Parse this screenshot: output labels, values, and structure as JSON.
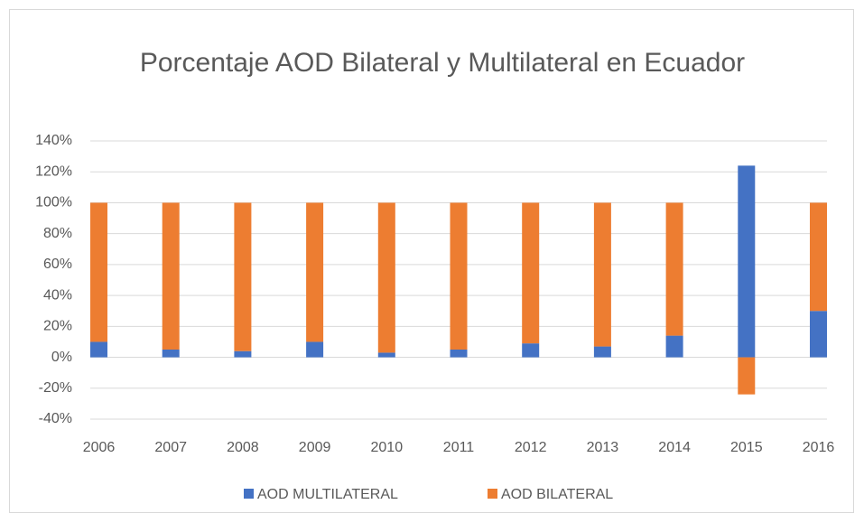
{
  "chart_data": {
    "type": "stacked_bar",
    "title": "Porcentaje AOD Bilateral y Multilateral en Ecuador",
    "categories": [
      "2006",
      "2007",
      "2008",
      "2009",
      "2010",
      "2011",
      "2012",
      "2013",
      "2014",
      "2015",
      "2016"
    ],
    "series": [
      {
        "name": "AOD MULTILATERAL",
        "color": "#4472c4",
        "values": [
          10,
          5,
          4,
          10,
          3,
          5,
          9,
          7,
          14,
          124,
          30
        ]
      },
      {
        "name": "AOD BILATERAL",
        "color": "#ed7d31",
        "values": [
          90,
          95,
          96,
          90,
          97,
          95,
          91,
          93,
          86,
          -24,
          70
        ]
      }
    ],
    "ylim": [
      -40,
      140
    ],
    "yticks": [
      {
        "value": -40,
        "label": "-40%"
      },
      {
        "value": -20,
        "label": "-20%"
      },
      {
        "value": 0,
        "label": "0%"
      },
      {
        "value": 20,
        "label": "20%"
      },
      {
        "value": 40,
        "label": "40%"
      },
      {
        "value": 60,
        "label": "60%"
      },
      {
        "value": 80,
        "label": "80%"
      },
      {
        "value": 100,
        "label": "100%"
      },
      {
        "value": 120,
        "label": "120%"
      },
      {
        "value": 140,
        "label": "140%"
      }
    ],
    "grid": true,
    "legend": "bottom"
  }
}
